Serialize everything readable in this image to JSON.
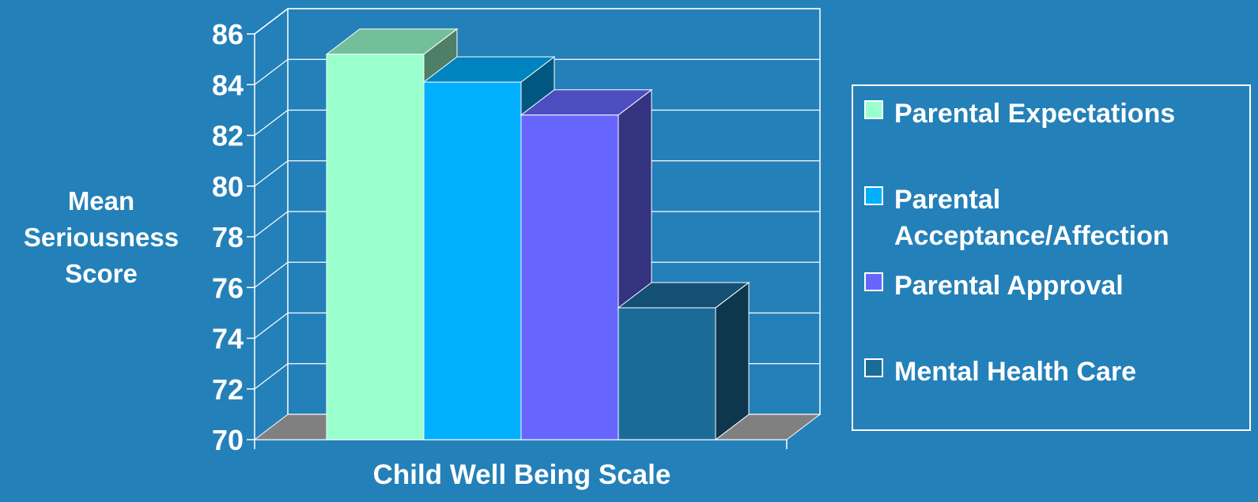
{
  "chart_data": {
    "type": "bar",
    "style": "3d-column",
    "xlabel": "Child Well Being Scale",
    "ylabel": "Mean\nSeriousness\nScore",
    "ylim": [
      70,
      86
    ],
    "yticks": [
      70,
      72,
      74,
      76,
      78,
      80,
      82,
      84,
      86
    ],
    "grid": true,
    "legend_position": "right",
    "series": [
      {
        "name": "Parental Expectations",
        "value": 85.2,
        "color": "#99ffcc"
      },
      {
        "name": "Parental Acceptance/Affection",
        "value": 84.1,
        "color": "#00b0ff"
      },
      {
        "name": "Parental Approval",
        "value": 82.8,
        "color": "#6666ff"
      },
      {
        "name": "Mental Health Care",
        "value": 75.2,
        "color": "#1b6b99"
      }
    ]
  }
}
